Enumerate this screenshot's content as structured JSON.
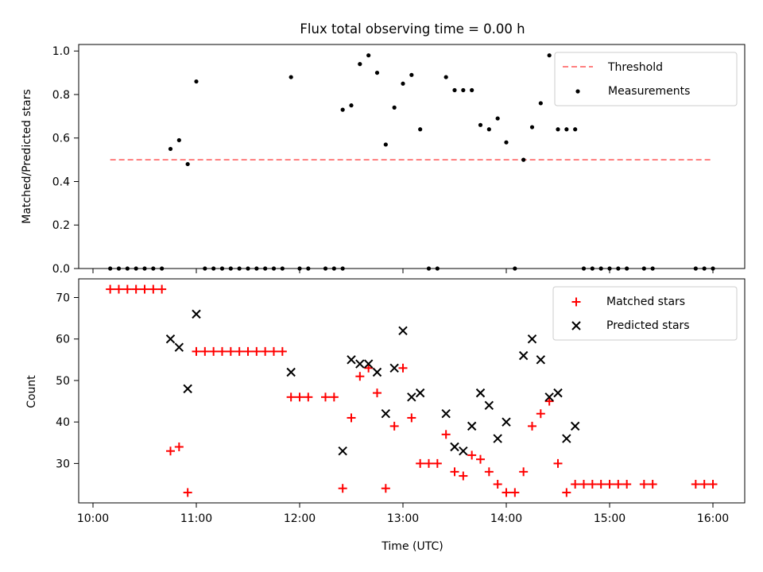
{
  "chart_data": {
    "title": "Flux total observing time = 0.00 h",
    "top": {
      "type": "scatter",
      "ylabel": "Matched/Predicted stars",
      "ylim": [
        0,
        1.03
      ],
      "yticks": [
        "0.0",
        "0.2",
        "0.4",
        "0.6",
        "0.8",
        "1.0"
      ],
      "threshold": {
        "name": "Threshold",
        "value": 0.5,
        "color": "#ff6f6f"
      },
      "measurements_name": "Measurements",
      "measurements_color": "#000000",
      "legend_placement": "top-right",
      "points": [
        [
          "10:10",
          0
        ],
        [
          "10:15",
          0
        ],
        [
          "10:20",
          0
        ],
        [
          "10:25",
          0
        ],
        [
          "10:30",
          0
        ],
        [
          "10:35",
          0
        ],
        [
          "10:40",
          0
        ],
        [
          "10:45",
          0.55
        ],
        [
          "10:50",
          0.59
        ],
        [
          "10:55",
          0.48
        ],
        [
          "11:00",
          0.86
        ],
        [
          "11:05",
          0
        ],
        [
          "11:10",
          0
        ],
        [
          "11:15",
          0
        ],
        [
          "11:20",
          0
        ],
        [
          "11:25",
          0
        ],
        [
          "11:30",
          0
        ],
        [
          "11:35",
          0
        ],
        [
          "11:40",
          0
        ],
        [
          "11:45",
          0
        ],
        [
          "11:50",
          0
        ],
        [
          "11:55",
          0.88
        ],
        [
          "12:00",
          0
        ],
        [
          "12:05",
          0
        ],
        [
          "12:15",
          0
        ],
        [
          "12:20",
          0
        ],
        [
          "12:25",
          0
        ],
        [
          "12:25",
          0.73
        ],
        [
          "12:30",
          0.75
        ],
        [
          "12:35",
          0.94
        ],
        [
          "12:40",
          0.98
        ],
        [
          "12:45",
          0.9
        ],
        [
          "12:50",
          0.57
        ],
        [
          "12:55",
          0.74
        ],
        [
          "13:00",
          0.85
        ],
        [
          "13:05",
          0.89
        ],
        [
          "13:10",
          0.64
        ],
        [
          "13:15",
          0
        ],
        [
          "13:20",
          0
        ],
        [
          "13:25",
          0.88
        ],
        [
          "13:30",
          0.82
        ],
        [
          "13:35",
          0.82
        ],
        [
          "13:40",
          0.82
        ],
        [
          "13:45",
          0.66
        ],
        [
          "13:50",
          0.64
        ],
        [
          "13:55",
          0.69
        ],
        [
          "14:00",
          0.58
        ],
        [
          "14:05",
          0
        ],
        [
          "14:10",
          0.5
        ],
        [
          "14:15",
          0.65
        ],
        [
          "14:20",
          0.76
        ],
        [
          "14:25",
          0.98
        ],
        [
          "14:30",
          0.64
        ],
        [
          "14:35",
          0.64
        ],
        [
          "14:40",
          0.64
        ],
        [
          "14:45",
          0
        ],
        [
          "14:50",
          0
        ],
        [
          "14:55",
          0
        ],
        [
          "15:00",
          0
        ],
        [
          "15:05",
          0
        ],
        [
          "15:10",
          0
        ],
        [
          "15:20",
          0
        ],
        [
          "15:25",
          0
        ],
        [
          "15:50",
          0
        ],
        [
          "15:55",
          0
        ],
        [
          "16:00",
          0
        ]
      ]
    },
    "bottom": {
      "type": "scatter",
      "xlabel": "Time (UTC)",
      "ylabel": "Count",
      "ylim": [
        20.5,
        74.5
      ],
      "yticks": [
        "30",
        "40",
        "50",
        "60",
        "70"
      ],
      "xticks": [
        "10:00",
        "11:00",
        "12:00",
        "13:00",
        "14:00",
        "15:00",
        "16:00"
      ],
      "legend_placement": "top-right",
      "series": [
        {
          "name": "Matched stars",
          "marker": "plus",
          "color": "#ff0000",
          "points": [
            [
              "10:10",
              72
            ],
            [
              "10:15",
              72
            ],
            [
              "10:20",
              72
            ],
            [
              "10:25",
              72
            ],
            [
              "10:30",
              72
            ],
            [
              "10:35",
              72
            ],
            [
              "10:40",
              72
            ],
            [
              "10:45",
              33
            ],
            [
              "10:50",
              34
            ],
            [
              "10:55",
              23
            ],
            [
              "11:00",
              57
            ],
            [
              "11:05",
              57
            ],
            [
              "11:10",
              57
            ],
            [
              "11:15",
              57
            ],
            [
              "11:20",
              57
            ],
            [
              "11:25",
              57
            ],
            [
              "11:30",
              57
            ],
            [
              "11:35",
              57
            ],
            [
              "11:40",
              57
            ],
            [
              "11:45",
              57
            ],
            [
              "11:50",
              57
            ],
            [
              "11:55",
              46
            ],
            [
              "12:00",
              46
            ],
            [
              "12:05",
              46
            ],
            [
              "12:15",
              46
            ],
            [
              "12:20",
              46
            ],
            [
              "12:25",
              24
            ],
            [
              "12:30",
              41
            ],
            [
              "12:35",
              51
            ],
            [
              "12:40",
              53
            ],
            [
              "12:45",
              47
            ],
            [
              "12:50",
              24
            ],
            [
              "12:55",
              39
            ],
            [
              "13:00",
              53
            ],
            [
              "13:05",
              41
            ],
            [
              "13:10",
              30
            ],
            [
              "13:15",
              30
            ],
            [
              "13:20",
              30
            ],
            [
              "13:25",
              37
            ],
            [
              "13:30",
              28
            ],
            [
              "13:35",
              27
            ],
            [
              "13:40",
              32
            ],
            [
              "13:45",
              31
            ],
            [
              "13:50",
              28
            ],
            [
              "13:55",
              25
            ],
            [
              "14:00",
              23
            ],
            [
              "14:05",
              23
            ],
            [
              "14:10",
              28
            ],
            [
              "14:15",
              39
            ],
            [
              "14:20",
              42
            ],
            [
              "14:25",
              45
            ],
            [
              "14:30",
              30
            ],
            [
              "14:35",
              23
            ],
            [
              "14:40",
              25
            ],
            [
              "14:45",
              25
            ],
            [
              "14:50",
              25
            ],
            [
              "14:55",
              25
            ],
            [
              "15:00",
              25
            ],
            [
              "15:05",
              25
            ],
            [
              "15:10",
              25
            ],
            [
              "15:20",
              25
            ],
            [
              "15:25",
              25
            ],
            [
              "15:50",
              25
            ],
            [
              "15:55",
              25
            ],
            [
              "16:00",
              25
            ]
          ]
        },
        {
          "name": "Predicted stars",
          "marker": "x",
          "color": "#000000",
          "points": [
            [
              "10:45",
              60
            ],
            [
              "10:50",
              58
            ],
            [
              "10:55",
              48
            ],
            [
              "11:00",
              66
            ],
            [
              "11:55",
              52
            ],
            [
              "12:25",
              33
            ],
            [
              "12:30",
              55
            ],
            [
              "12:35",
              54
            ],
            [
              "12:40",
              54
            ],
            [
              "12:45",
              52
            ],
            [
              "12:50",
              42
            ],
            [
              "12:55",
              53
            ],
            [
              "13:00",
              62
            ],
            [
              "13:05",
              46
            ],
            [
              "13:10",
              47
            ],
            [
              "13:25",
              42
            ],
            [
              "13:30",
              34
            ],
            [
              "13:35",
              33
            ],
            [
              "13:40",
              39
            ],
            [
              "13:45",
              47
            ],
            [
              "13:50",
              44
            ],
            [
              "13:55",
              36
            ],
            [
              "14:00",
              40
            ],
            [
              "14:10",
              56
            ],
            [
              "14:15",
              60
            ],
            [
              "14:20",
              55
            ],
            [
              "14:25",
              46
            ],
            [
              "14:30",
              47
            ],
            [
              "14:35",
              36
            ],
            [
              "14:40",
              39
            ]
          ]
        }
      ]
    }
  }
}
